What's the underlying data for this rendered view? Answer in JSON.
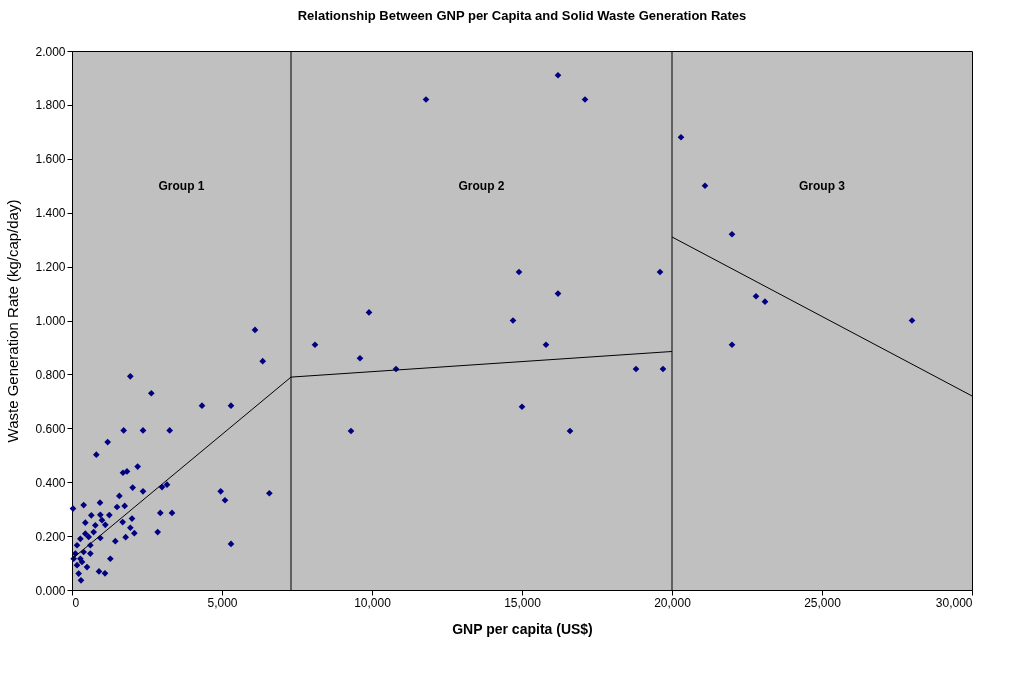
{
  "chart_data": {
    "type": "scatter",
    "title": "Relationship Between GNP per Capita and Solid Waste Generation Rates",
    "xlabel": "GNP per capita (US$)",
    "ylabel": "Waste Generation Rate (kg/cap/day)",
    "xlim": [
      0,
      30000
    ],
    "ylim": [
      0,
      2
    ],
    "xticks": [
      {
        "value": 0,
        "label": "0"
      },
      {
        "value": 5000,
        "label": "5,000"
      },
      {
        "value": 10000,
        "label": "10,000"
      },
      {
        "value": 15000,
        "label": "15,000"
      },
      {
        "value": 20000,
        "label": "20,000"
      },
      {
        "value": 25000,
        "label": "25,000"
      },
      {
        "value": 30000,
        "label": "30,000"
      }
    ],
    "yticks": [
      {
        "value": 0,
        "label": "0.000"
      },
      {
        "value": 0.2,
        "label": "0.200"
      },
      {
        "value": 0.4,
        "label": "0.400"
      },
      {
        "value": 0.6,
        "label": "0.600"
      },
      {
        "value": 0.8,
        "label": "0.800"
      },
      {
        "value": 1,
        "label": "1.000"
      },
      {
        "value": 1.2,
        "label": "1.200"
      },
      {
        "value": 1.4,
        "label": "1.400"
      },
      {
        "value": 1.6,
        "label": "1.600"
      },
      {
        "value": 1.8,
        "label": "1.800"
      },
      {
        "value": 2,
        "label": "2.000"
      }
    ],
    "line_style": "solid",
    "ref_lines": [
      {
        "axis": "x",
        "value": 7300,
        "color": "#000000"
      },
      {
        "axis": "x",
        "value": 20000,
        "color": "#000000"
      }
    ],
    "annotations": [
      "Group 1",
      "Group 2",
      "Group 3"
    ],
    "series": [
      {
        "color": "#000080",
        "marker": "diamond",
        "x": [
          11800,
          16200,
          17100,
          20300,
          21100,
          22000,
          14900,
          19600,
          16200,
          9900,
          14700,
          22800,
          23100,
          28000,
          8100,
          15800,
          22000,
          9600,
          10800,
          18800,
          19700,
          15000,
          9300,
          16600,
          6357,
          1944,
          2644,
          4333,
          5300,
          1722,
          2367,
          3256,
          1189,
          811,
          1700,
          1833,
          2189,
          2022,
          2367,
          3000,
          3167,
          4956,
          5100,
          6578,
          33,
          389,
          933,
          1578,
          1500,
          1756,
          644,
          1244,
          2944,
          3333,
          2000,
          944,
          444,
          1111,
          1689,
          1944,
          2078,
          2856,
          1789,
          1444,
          944,
          722,
          278,
          1278,
          5300,
          900,
          1100,
          300,
          222,
          167,
          389,
          611,
          111,
          333,
          500,
          167,
          611,
          444,
          778,
          1000,
          556,
          278,
          56,
          6100
        ],
        "values": [
          1.82,
          1.91,
          1.82,
          1.68,
          1.5,
          1.32,
          1.18,
          1.18,
          1.1,
          1.03,
          1.0,
          1.09,
          1.07,
          1.0,
          0.91,
          0.91,
          0.91,
          0.86,
          0.82,
          0.82,
          0.82,
          0.68,
          0.59,
          0.59,
          0.849,
          0.793,
          0.73,
          0.684,
          0.684,
          0.592,
          0.592,
          0.592,
          0.549,
          0.502,
          0.435,
          0.44,
          0.458,
          0.38,
          0.366,
          0.382,
          0.391,
          0.366,
          0.333,
          0.359,
          0.302,
          0.315,
          0.324,
          0.349,
          0.308,
          0.312,
          0.277,
          0.278,
          0.286,
          0.286,
          0.265,
          0.279,
          0.25,
          0.242,
          0.252,
          0.231,
          0.211,
          0.215,
          0.196,
          0.181,
          0.193,
          0.215,
          0.19,
          0.116,
          0.171,
          0.069,
          0.062,
          0.036,
          0.061,
          0.166,
          0.141,
          0.135,
          0.135,
          0.104,
          0.085,
          0.092,
          0.166,
          0.209,
          0.24,
          0.259,
          0.197,
          0.116,
          0.116,
          0.965
        ]
      },
      {
        "type": "line",
        "marker": "none",
        "color": "#000000",
        "x": [
          0,
          7300
        ],
        "values": [
          0.115,
          0.79
        ]
      },
      {
        "type": "line",
        "marker": "none",
        "color": "#000000",
        "x": [
          7300,
          20000
        ],
        "values": [
          0.79,
          0.885
        ]
      },
      {
        "type": "line",
        "marker": "none",
        "color": "#000000",
        "x": [
          20000,
          30000
        ],
        "values": [
          1.31,
          0.72
        ]
      }
    ]
  }
}
